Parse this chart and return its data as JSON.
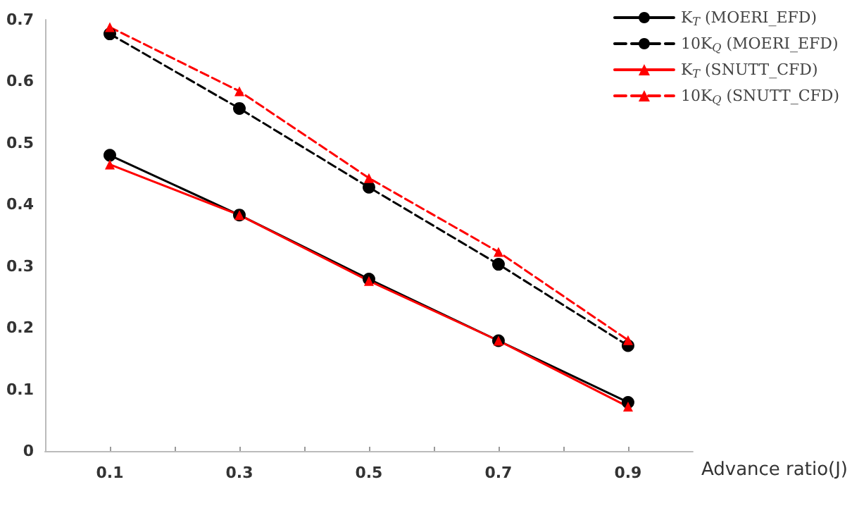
{
  "chart_data": {
    "type": "line",
    "xlabel": "Advance ratio(J)",
    "x": [
      0.1,
      0.3,
      0.5,
      0.7,
      0.9
    ],
    "xlim": [
      0,
      1.0
    ],
    "xticks": [
      0.1,
      {
        "value": 0.2,
        "label": null
      },
      0.3,
      {
        "value": 0.4,
        "label": null
      },
      0.5,
      {
        "value": 0.6,
        "label": null
      },
      0.7,
      {
        "value": 0.8,
        "label": null
      },
      0.9
    ],
    "ylim": [
      0,
      0.7
    ],
    "yticks": [
      0,
      0.1,
      0.2,
      0.3,
      0.4,
      0.5,
      0.6,
      0.7
    ],
    "grid": false,
    "legend": "top right",
    "series": [
      {
        "name": "K$_{T}$ (MOERI_EFD)",
        "color": "#000000",
        "marker": "circle",
        "line_style": "solid",
        "values": [
          0.48,
          0.383,
          0.279,
          0.179,
          0.079
        ]
      },
      {
        "name": "10K$_{Q}$ (MOERI_EFD)",
        "color": "#000000",
        "marker": "circle",
        "line_style": "dashed",
        "values": [
          0.677,
          0.556,
          0.428,
          0.303,
          0.171
        ]
      },
      {
        "name": "K$_{T}$ (SNUTT_CFD)",
        "color": "#ff0000",
        "marker": "triangle",
        "line_style": "solid",
        "values": [
          0.465,
          0.383,
          0.276,
          0.179,
          0.072
        ]
      },
      {
        "name": "10K$_{Q}$ (SNUTT_CFD)",
        "color": "#ff0000",
        "marker": "triangle",
        "line_style": "dashed",
        "values": [
          0.688,
          0.584,
          0.443,
          0.323,
          0.18
        ]
      }
    ]
  }
}
